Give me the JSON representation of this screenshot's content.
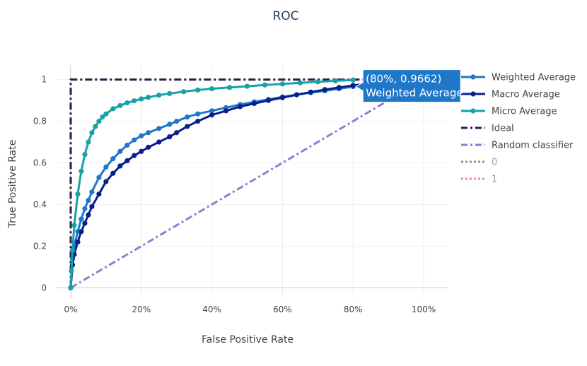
{
  "chart_data": {
    "type": "line",
    "title": "ROC",
    "xlabel": "False Positive Rate",
    "ylabel": "True Positive Rate",
    "xlim": [
      -0.04,
      1.07
    ],
    "ylim": [
      -0.05,
      1.07
    ],
    "x_ticks": [
      0,
      0.2,
      0.4,
      0.6,
      0.8,
      1.0
    ],
    "x_tick_labels": [
      "0%",
      "20%",
      "40%",
      "60%",
      "80%",
      "100%"
    ],
    "y_ticks": [
      0,
      0.2,
      0.4,
      0.6,
      0.8,
      1
    ],
    "y_tick_labels": [
      "0",
      "0.2",
      "0.4",
      "0.6",
      "0.8",
      "1"
    ],
    "grid": true,
    "legend_position": "right",
    "series": [
      {
        "name": "Weighted Average",
        "color": "#1f77c8",
        "style": "line+markers",
        "x": [
          0,
          0.005,
          0.01,
          0.02,
          0.03,
          0.04,
          0.05,
          0.06,
          0.08,
          0.1,
          0.12,
          0.14,
          0.16,
          0.18,
          0.2,
          0.22,
          0.25,
          0.28,
          0.3,
          0.33,
          0.36,
          0.4,
          0.44,
          0.48,
          0.52,
          0.56,
          0.6,
          0.64,
          0.68,
          0.72,
          0.76,
          0.8
        ],
        "y": [
          0,
          0.14,
          0.2,
          0.27,
          0.33,
          0.38,
          0.42,
          0.46,
          0.53,
          0.58,
          0.62,
          0.655,
          0.685,
          0.71,
          0.73,
          0.745,
          0.765,
          0.785,
          0.8,
          0.82,
          0.835,
          0.85,
          0.865,
          0.88,
          0.893,
          0.905,
          0.917,
          0.927,
          0.937,
          0.946,
          0.956,
          0.9662
        ]
      },
      {
        "name": "Macro Average",
        "color": "#0b1f8c",
        "style": "line+markers",
        "x": [
          0,
          0.005,
          0.01,
          0.02,
          0.03,
          0.04,
          0.05,
          0.06,
          0.08,
          0.1,
          0.12,
          0.14,
          0.16,
          0.18,
          0.2,
          0.22,
          0.25,
          0.28,
          0.3,
          0.33,
          0.36,
          0.4,
          0.44,
          0.48,
          0.52,
          0.56,
          0.6,
          0.64,
          0.68,
          0.72,
          0.76,
          0.8,
          0.84
        ],
        "y": [
          0,
          0.11,
          0.16,
          0.22,
          0.27,
          0.31,
          0.35,
          0.39,
          0.45,
          0.51,
          0.55,
          0.585,
          0.61,
          0.635,
          0.655,
          0.675,
          0.7,
          0.725,
          0.745,
          0.775,
          0.8,
          0.83,
          0.85,
          0.87,
          0.885,
          0.9,
          0.913,
          0.927,
          0.94,
          0.952,
          0.962,
          0.972,
          0.98
        ]
      },
      {
        "name": "Micro Average",
        "color": "#17a2a8",
        "style": "line+markers",
        "x": [
          0,
          0.002,
          0.005,
          0.01,
          0.02,
          0.03,
          0.04,
          0.05,
          0.06,
          0.07,
          0.08,
          0.09,
          0.1,
          0.12,
          0.14,
          0.16,
          0.18,
          0.2,
          0.22,
          0.25,
          0.28,
          0.32,
          0.36,
          0.4,
          0.45,
          0.5,
          0.55,
          0.6,
          0.65,
          0.7,
          0.75,
          0.8
        ],
        "y": [
          0,
          0.08,
          0.18,
          0.3,
          0.45,
          0.56,
          0.64,
          0.7,
          0.745,
          0.775,
          0.8,
          0.82,
          0.835,
          0.86,
          0.875,
          0.888,
          0.898,
          0.907,
          0.915,
          0.925,
          0.933,
          0.942,
          0.95,
          0.956,
          0.962,
          0.968,
          0.974,
          0.979,
          0.984,
          0.989,
          0.994,
          0.998
        ]
      },
      {
        "name": "Ideal",
        "color": "#2b1a4a",
        "style": "dashdot",
        "x": [
          0,
          0,
          1
        ],
        "y": [
          0,
          1,
          1
        ]
      },
      {
        "name": "Random classifier",
        "color": "#8c7fd4",
        "style": "dashdot",
        "x": [
          0,
          1
        ],
        "y": [
          0,
          1
        ]
      },
      {
        "name": "0",
        "color": "#a08c9c",
        "style": "dotted",
        "hidden": true,
        "x": [],
        "y": []
      },
      {
        "name": "1",
        "color": "#f77fbf",
        "style": "dotted",
        "hidden": true,
        "x": [],
        "y": []
      }
    ],
    "tooltip": {
      "line1": "(80%, 0.9662)",
      "line2": "Weighted Average",
      "x": 0.8,
      "y": 0.9662,
      "color": "#1f77c8"
    }
  }
}
